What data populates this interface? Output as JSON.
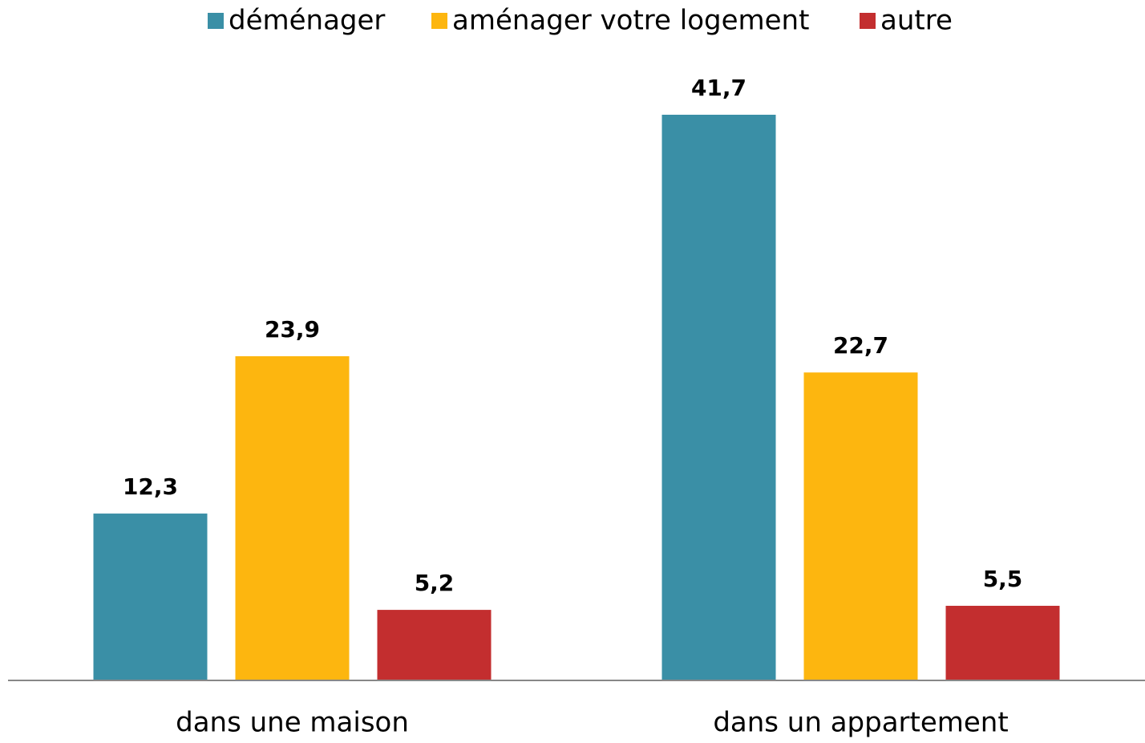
{
  "chart_data": {
    "type": "bar",
    "categories": [
      "dans une maison",
      "dans un appartement"
    ],
    "series": [
      {
        "name": "déménager",
        "color": "#3a8fa6",
        "values": [
          12.3,
          41.7
        ],
        "value_labels": [
          "12,3",
          "41,7"
        ]
      },
      {
        "name": "aménager votre logement",
        "color": "#fdb60f",
        "values": [
          23.9,
          22.7
        ],
        "value_labels": [
          "23,9",
          "22,7"
        ]
      },
      {
        "name": "autre",
        "color": "#c32e2f",
        "values": [
          5.2,
          5.5
        ],
        "value_labels": [
          "5,2",
          "5,5"
        ]
      }
    ],
    "legend": "top"
  }
}
